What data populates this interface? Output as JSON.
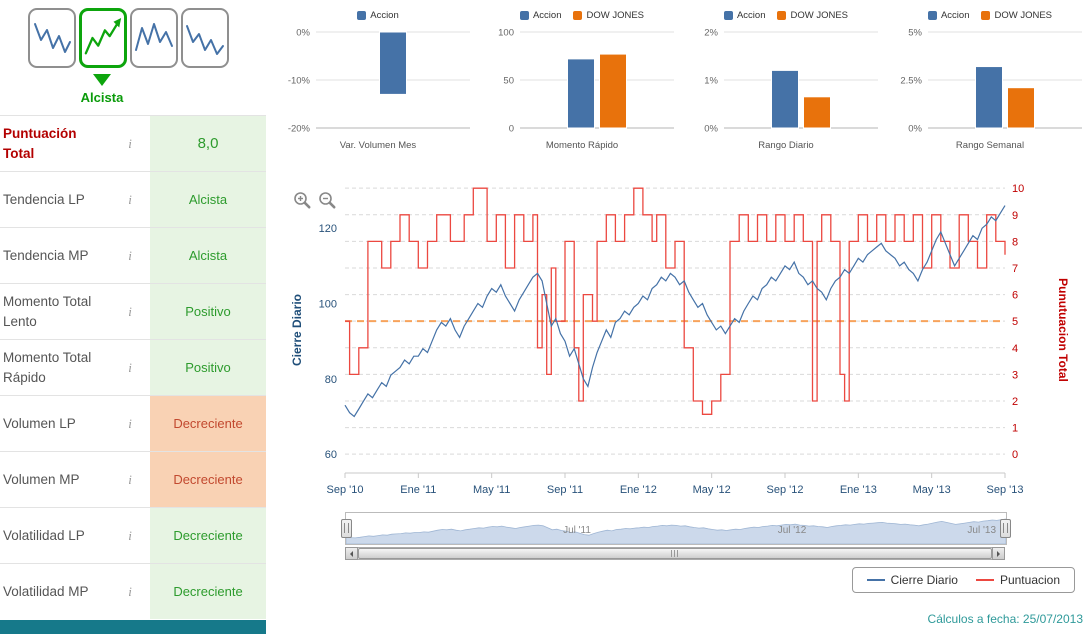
{
  "page": {
    "footer_note": "Cálculos a fecha: 25/07/2013"
  },
  "sidebar": {
    "signal_label": "Alcista",
    "info_icon": "i",
    "rows": [
      {
        "label": "Puntuación Total",
        "value": "8,0",
        "state": "score"
      },
      {
        "label": "Tendencia LP",
        "value": "Alcista",
        "state": "good"
      },
      {
        "label": "Tendencia MP",
        "value": "Alcista",
        "state": "good"
      },
      {
        "label": "Momento Total Lento",
        "value": "Positivo",
        "state": "good"
      },
      {
        "label": "Momento Total Rápido",
        "value": "Positivo",
        "state": "good"
      },
      {
        "label": "Volumen LP",
        "value": "Decreciente",
        "state": "bad"
      },
      {
        "label": "Volumen MP",
        "value": "Decreciente",
        "state": "bad"
      },
      {
        "label": "Volatilidad LP",
        "value": "Decreciente",
        "state": "good"
      },
      {
        "label": "Volatilidad MP",
        "value": "Decreciente",
        "state": "good"
      }
    ]
  },
  "colors": {
    "accion": "#4572a7",
    "dow_jones": "#e8720c",
    "score_line": "#ec4840",
    "midline": "#f7a35c",
    "positive_text": "#2d9b2d",
    "negative_text": "#c2492f",
    "teal": "#16798a"
  },
  "chart_data": [
    {
      "id": "var-volumen-mes",
      "type": "bar",
      "title": "Var. Volumen Mes",
      "ylim": [
        -20,
        0
      ],
      "yticks": [
        "0%",
        "-10%",
        "-20%"
      ],
      "series": [
        {
          "name": "Accion",
          "color": "#4572a7",
          "values": [
            -13
          ]
        }
      ]
    },
    {
      "id": "momento-rapido",
      "type": "bar",
      "title": "Momento Rápido",
      "ylim": [
        0,
        100
      ],
      "yticks": [
        "100",
        "50",
        "0"
      ],
      "series": [
        {
          "name": "Accion",
          "color": "#4572a7",
          "values": [
            72
          ]
        },
        {
          "name": "DOW JONES",
          "color": "#e8720c",
          "values": [
            77
          ]
        }
      ]
    },
    {
      "id": "rango-diario",
      "type": "bar",
      "title": "Rango Diario",
      "ylim": [
        0,
        2
      ],
      "yticks": [
        "2%",
        "1%",
        "0%"
      ],
      "series": [
        {
          "name": "Accion",
          "color": "#4572a7",
          "values": [
            1.2
          ]
        },
        {
          "name": "DOW JONES",
          "color": "#e8720c",
          "values": [
            0.65
          ]
        }
      ]
    },
    {
      "id": "rango-semanal",
      "type": "bar",
      "title": "Rango Semanal",
      "ylim": [
        0,
        5
      ],
      "yticks": [
        "5%",
        "2.5%",
        "0%"
      ],
      "series": [
        {
          "name": "Accion",
          "color": "#4572a7",
          "values": [
            3.2
          ]
        },
        {
          "name": "DOW JONES",
          "color": "#e8720c",
          "values": [
            2.1
          ]
        }
      ]
    },
    {
      "id": "precio-puntuacion",
      "type": "line",
      "left_axis": {
        "title": "Cierre Diario",
        "color": "#28527a",
        "ticks": [
          60,
          80,
          100,
          120
        ],
        "range": [
          55,
          132
        ]
      },
      "right_axis": {
        "title": "Punutuacion Total",
        "color": "#c00000",
        "ticks": [
          0,
          1,
          2,
          3,
          4,
          5,
          6,
          7,
          8,
          9,
          10
        ]
      },
      "x_ticks": [
        "Sep '10",
        "Ene '11",
        "May '11",
        "Sep '11",
        "Ene '12",
        "May '12",
        "Sep '12",
        "Ene '13",
        "May '13",
        "Sep '13"
      ],
      "x_tick_weeks": [
        0,
        16,
        32,
        48,
        64,
        80,
        96,
        112,
        128,
        144
      ],
      "midline": {
        "value": 5,
        "color": "#f7a35c"
      },
      "series": [
        {
          "name": "Cierre Diario",
          "color": "#4572a7",
          "values": [
            73,
            71,
            70,
            72,
            74,
            76,
            75,
            77,
            79,
            78,
            81,
            82,
            83,
            85,
            84,
            86,
            86,
            88,
            87,
            90,
            93,
            95,
            94,
            96,
            93,
            91,
            94,
            96,
            98,
            100,
            99,
            102,
            104,
            103,
            105,
            102,
            100,
            98,
            101,
            103,
            105,
            107,
            108,
            106,
            100,
            94,
            96,
            92,
            90,
            86,
            88,
            84,
            80,
            78,
            83,
            87,
            90,
            93,
            91,
            95,
            96,
            98,
            97,
            99,
            100,
            102,
            101,
            104,
            105,
            107,
            106,
            108,
            107,
            105,
            106,
            103,
            101,
            99,
            100,
            97,
            95,
            93,
            94,
            92,
            94,
            96,
            95,
            98,
            100,
            102,
            101,
            104,
            105,
            107,
            106,
            108,
            110,
            109,
            111,
            108,
            107,
            105,
            106,
            104,
            103,
            101,
            104,
            106,
            107,
            109,
            108,
            110,
            112,
            111,
            113,
            114,
            115,
            116,
            114,
            113,
            112,
            110,
            111,
            109,
            108,
            106,
            109,
            111,
            114,
            117,
            119,
            116,
            113,
            110,
            112,
            114,
            116,
            118,
            117,
            120,
            121,
            123,
            122,
            124,
            126
          ]
        },
        {
          "name": "Puntuacion",
          "color": "#ec4840",
          "steps": [
            [
              0,
              5
            ],
            [
              1,
              3
            ],
            [
              3,
              4
            ],
            [
              5,
              8
            ],
            [
              8,
              7
            ],
            [
              10,
              8
            ],
            [
              12,
              9
            ],
            [
              14,
              8
            ],
            [
              16,
              7
            ],
            [
              18,
              8
            ],
            [
              20,
              9
            ],
            [
              23,
              8
            ],
            [
              26,
              9
            ],
            [
              28,
              10
            ],
            [
              31,
              8
            ],
            [
              33,
              9
            ],
            [
              35,
              7
            ],
            [
              37,
              9
            ],
            [
              39,
              8
            ],
            [
              41,
              9
            ],
            [
              42,
              4
            ],
            [
              43,
              6
            ],
            [
              44,
              3
            ],
            [
              45,
              7
            ],
            [
              46,
              5
            ],
            [
              48,
              8
            ],
            [
              50,
              4
            ],
            [
              51,
              2
            ],
            [
              52,
              6
            ],
            [
              54,
              5
            ],
            [
              55,
              8
            ],
            [
              57,
              9
            ],
            [
              59,
              8
            ],
            [
              61,
              9
            ],
            [
              63,
              10
            ],
            [
              65,
              9
            ],
            [
              67,
              8
            ],
            [
              68,
              9
            ],
            [
              70,
              7
            ],
            [
              72,
              8
            ],
            [
              74,
              4
            ],
            [
              76,
              2
            ],
            [
              78,
              1.5
            ],
            [
              80,
              2
            ],
            [
              82,
              3
            ],
            [
              84,
              8
            ],
            [
              86,
              9
            ],
            [
              88,
              8
            ],
            [
              90,
              9
            ],
            [
              92,
              8
            ],
            [
              94,
              9
            ],
            [
              96,
              8
            ],
            [
              98,
              9
            ],
            [
              100,
              8
            ],
            [
              102,
              2
            ],
            [
              103,
              8
            ],
            [
              104,
              9
            ],
            [
              106,
              8
            ],
            [
              108,
              3
            ],
            [
              109,
              2
            ],
            [
              110,
              8
            ],
            [
              112,
              9
            ],
            [
              114,
              8
            ],
            [
              116,
              9
            ],
            [
              118,
              8
            ],
            [
              120,
              9
            ],
            [
              122,
              8
            ],
            [
              124,
              9
            ],
            [
              126,
              7
            ],
            [
              128,
              9
            ],
            [
              130,
              8
            ],
            [
              132,
              7
            ],
            [
              134,
              9
            ],
            [
              136,
              8
            ],
            [
              138,
              7
            ],
            [
              140,
              9
            ],
            [
              142,
              8
            ],
            [
              144,
              7.5
            ]
          ]
        }
      ],
      "navigator": {
        "labels": [
          "Jul '11",
          "Jul '12",
          "Jul '13"
        ]
      }
    }
  ]
}
